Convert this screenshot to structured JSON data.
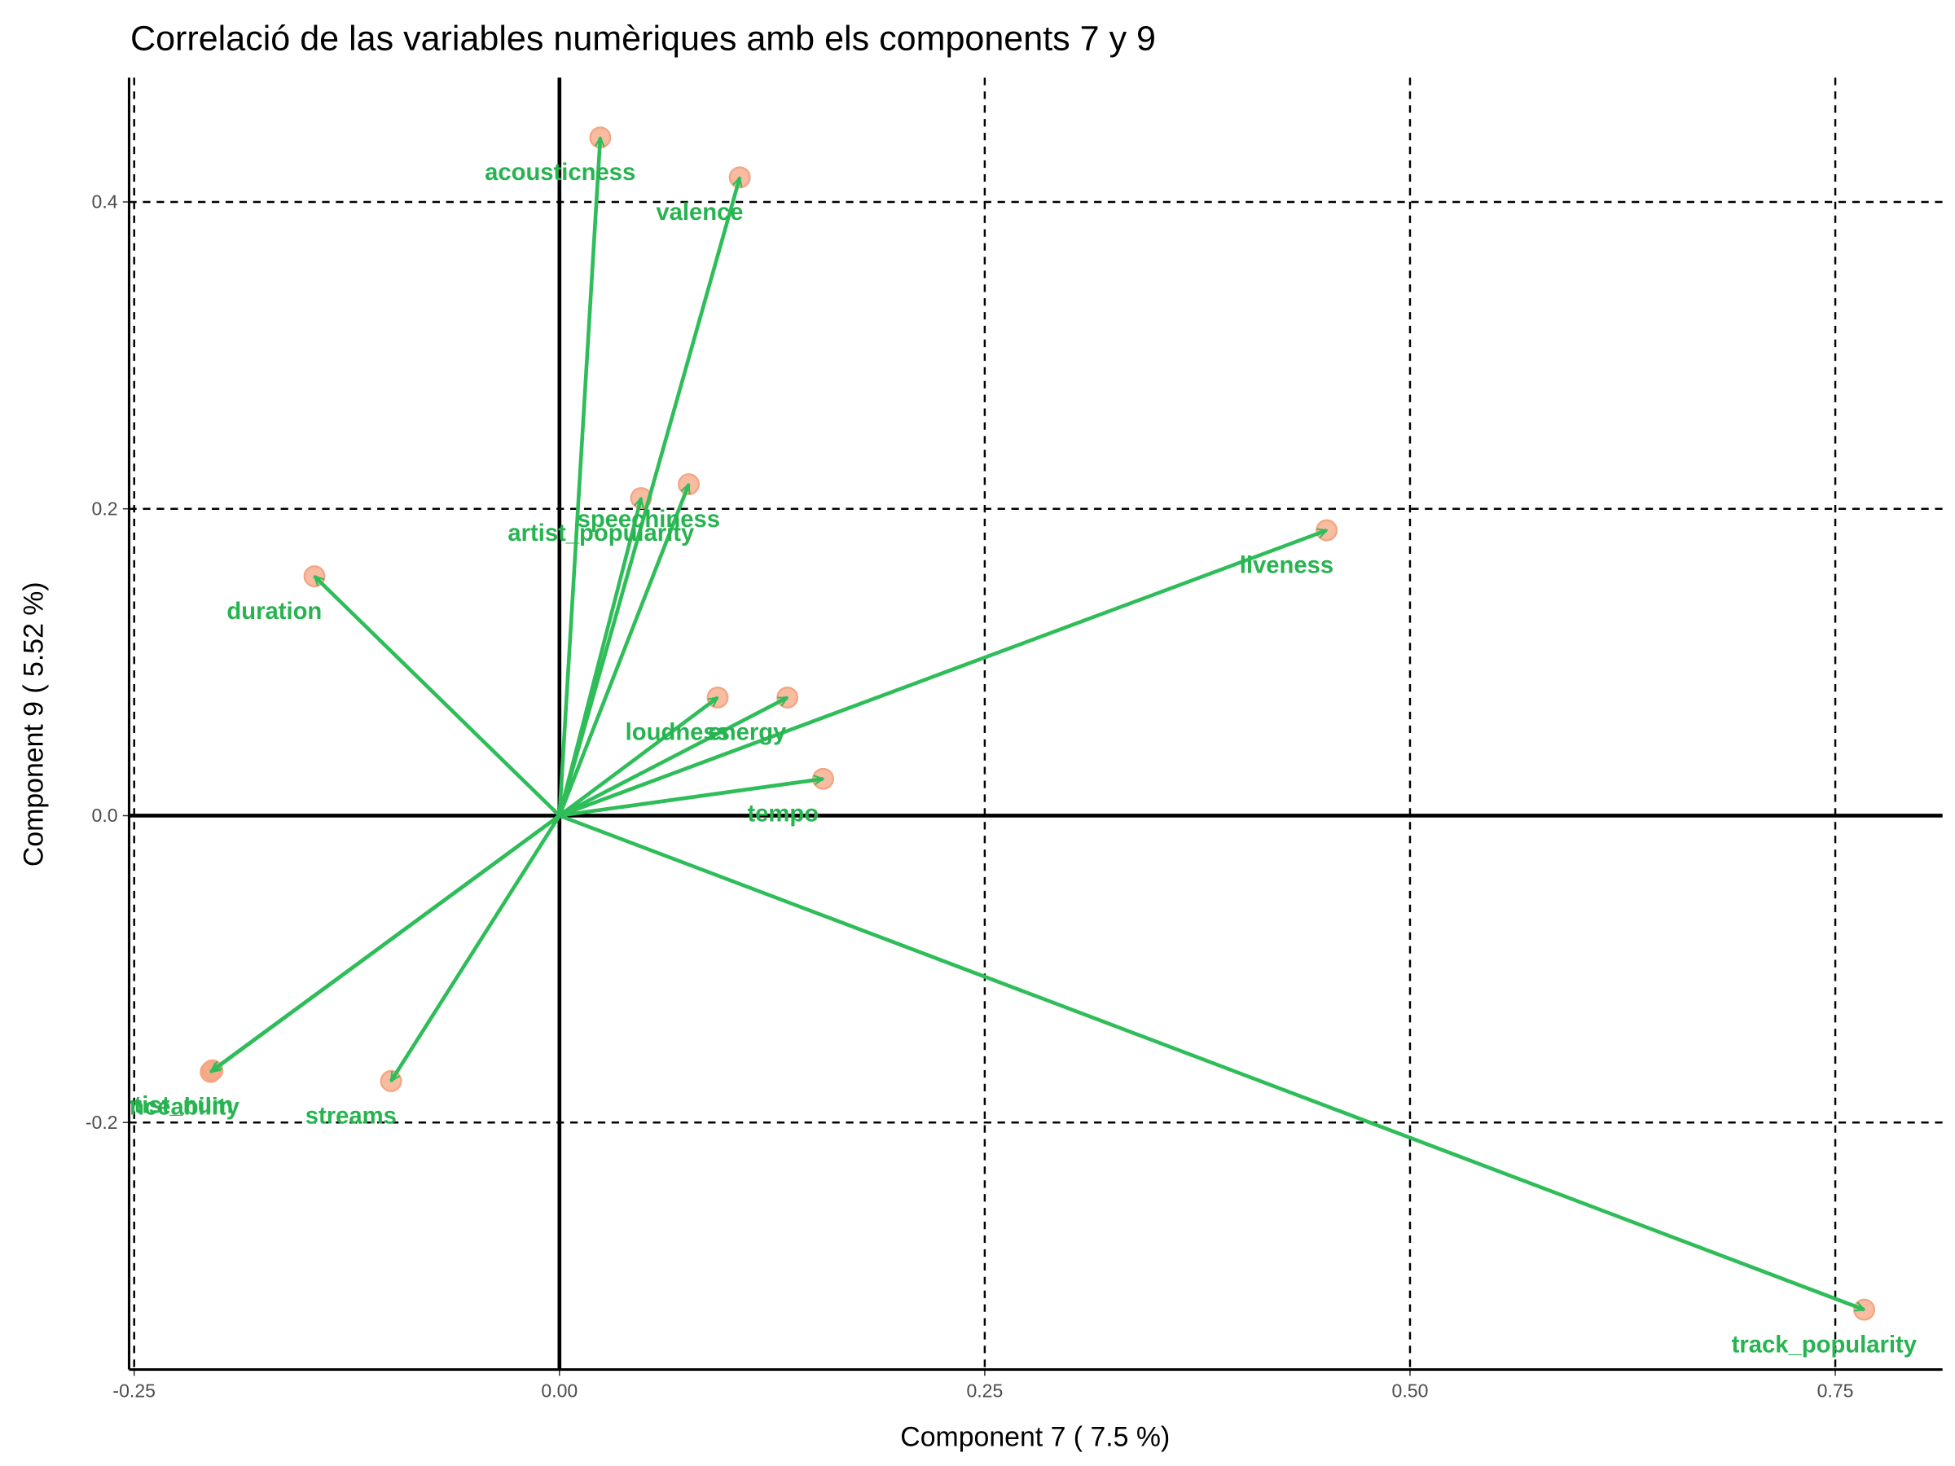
{
  "chart_data": {
    "type": "biplot",
    "title": "Correlació de las variables numèriques amb els components 7 y 9",
    "x_label": "Component 7 ( 7.5 %)",
    "y_label": "Component 9 ( 5.52 %)",
    "labels": [
      "acousticness",
      "valence",
      "speechiness",
      "artist_popularity",
      "duration",
      "liveness",
      "loudness",
      "energy",
      "tempo",
      "track_popularity",
      "streams",
      "artist_num",
      "danceability"
    ],
    "x": [
      0.024,
      0.106,
      0.076,
      0.048,
      -0.144,
      0.451,
      0.093,
      0.134,
      0.155,
      0.767,
      -0.099,
      -0.204,
      -0.205
    ],
    "values": [
      0.442,
      0.416,
      0.216,
      0.207,
      0.156,
      0.186,
      0.077,
      0.077,
      0.024,
      -0.322,
      -0.173,
      -0.166,
      -0.167
    ],
    "arrow_color": "#2ebd59",
    "point_color": "#f4a582",
    "label_color": "#27b350",
    "xlim": [
      -0.253,
      0.813
    ],
    "ylim": [
      -0.361,
      0.481
    ],
    "xticks": [
      {
        "value": -0.25,
        "label": "-0.25"
      },
      {
        "value": 0,
        "label": "0.00"
      },
      {
        "value": 0.25,
        "label": "0.25"
      },
      {
        "value": 0.5,
        "label": "0.50"
      },
      {
        "value": 0.75,
        "label": "0.75"
      }
    ],
    "yticks": [
      -0.2,
      {
        "value": 0,
        "label": "0.0"
      },
      0.2,
      0.4
    ],
    "grid": true
  }
}
